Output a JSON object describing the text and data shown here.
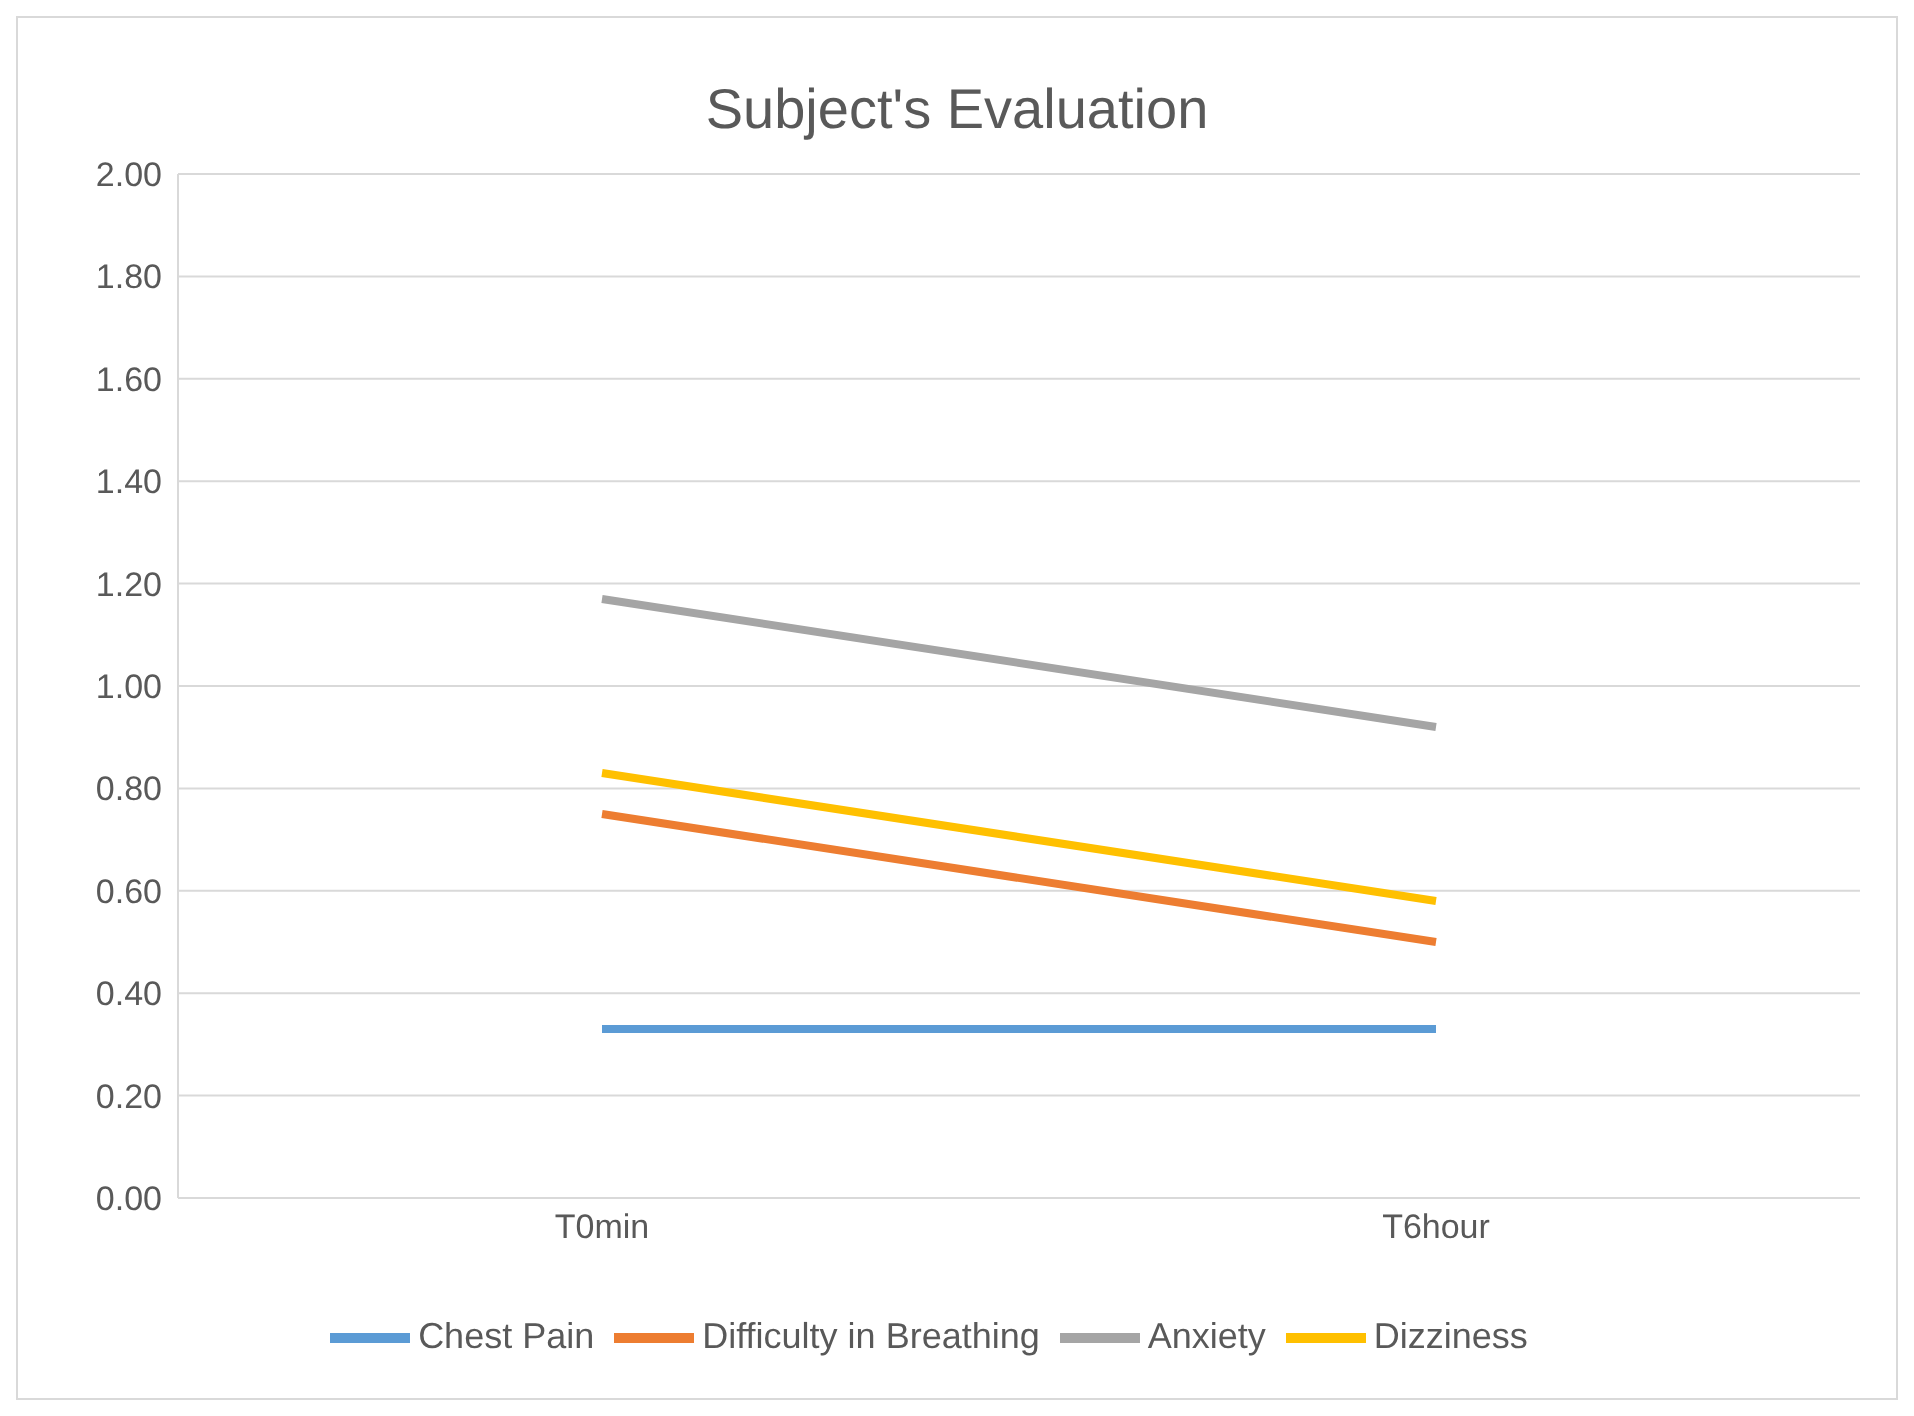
{
  "chart_data": {
    "type": "line",
    "title": "Subject's Evaluation",
    "categories": [
      "T0min",
      "T6hour"
    ],
    "series": [
      {
        "name": "Chest Pain",
        "color": "#5b9bd5",
        "values": [
          0.33,
          0.33
        ]
      },
      {
        "name": "Difficulty in Breathing",
        "color": "#ed7d31",
        "values": [
          0.75,
          0.5
        ]
      },
      {
        "name": "Anxiety",
        "color": "#a5a5a5",
        "values": [
          1.17,
          0.92
        ]
      },
      {
        "name": "Dizziness",
        "color": "#ffc000",
        "values": [
          0.83,
          0.58
        ]
      }
    ],
    "ylim": [
      0,
      2
    ],
    "yticks": [
      {
        "value": 0,
        "label": "0.00"
      },
      {
        "value": 0.2,
        "label": "0.20"
      },
      {
        "value": 0.4,
        "label": "0.40"
      },
      {
        "value": 0.6,
        "label": "0.60"
      },
      {
        "value": 0.8,
        "label": "0.80"
      },
      {
        "value": 1,
        "label": "1.00"
      },
      {
        "value": 1.2,
        "label": "1.20"
      },
      {
        "value": 1.4,
        "label": "1.40"
      },
      {
        "value": 1.6,
        "label": "1.60"
      },
      {
        "value": 1.8,
        "label": "1.80"
      },
      {
        "value": 2,
        "label": "2.00"
      }
    ],
    "grid": "y",
    "legend": "bottom",
    "marker": "none",
    "line_style": "solid"
  }
}
